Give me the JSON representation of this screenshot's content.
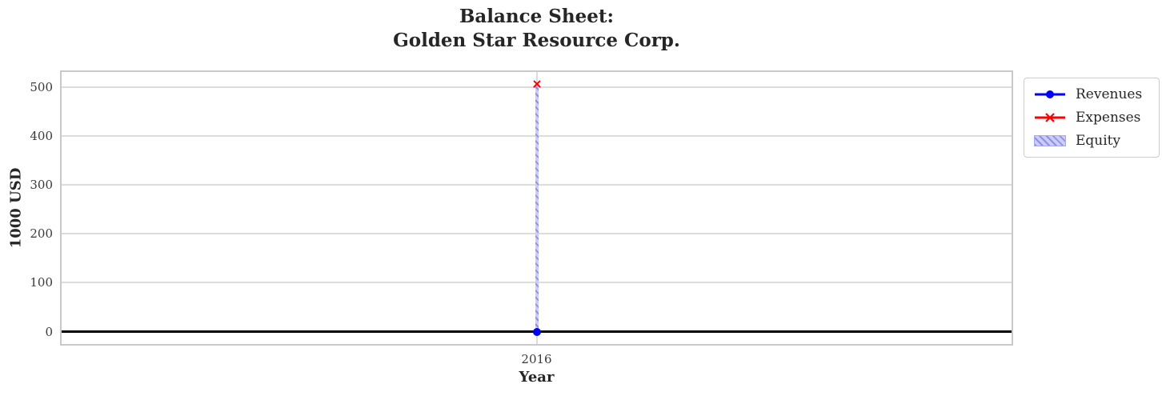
{
  "chart_data": {
    "type": "line",
    "title": "Balance Sheet:\nGolden Star Resource Corp.",
    "xlabel": "Year",
    "ylabel": "1000 USD",
    "x": [
      2016
    ],
    "xtick_labels": [
      "2016"
    ],
    "yticks": [
      0,
      100,
      200,
      300,
      400,
      500
    ],
    "ylim": [
      -25.25,
      530.25
    ],
    "grid": true,
    "background": "#ffffff",
    "axhline": {
      "y": 0,
      "color": "#000000"
    },
    "series": [
      {
        "name": "Revenues",
        "plot": "line",
        "marker": "circle",
        "color": "#0000ff",
        "values": [
          0
        ]
      },
      {
        "name": "Expenses",
        "plot": "line",
        "marker": "x",
        "color": "#ff0000",
        "values": [
          505
        ]
      },
      {
        "name": "Equity",
        "plot": "bar",
        "color": "#0000ff",
        "fill": "#ccccf8",
        "hatch": "//",
        "hatch_color": "#9090e8",
        "edge_color": "#a8a8f0",
        "values": [
          505
        ]
      }
    ],
    "legend": {
      "position": "outside upper right",
      "entries": [
        "Revenues",
        "Expenses",
        "Equity"
      ]
    }
  },
  "styles": {
    "grid_color": "#dcdcdc",
    "spine_color": "#c9c9c9",
    "text_color": "#262626",
    "tick_color": "#3a3a3a",
    "legend_border": "#cccccc"
  }
}
